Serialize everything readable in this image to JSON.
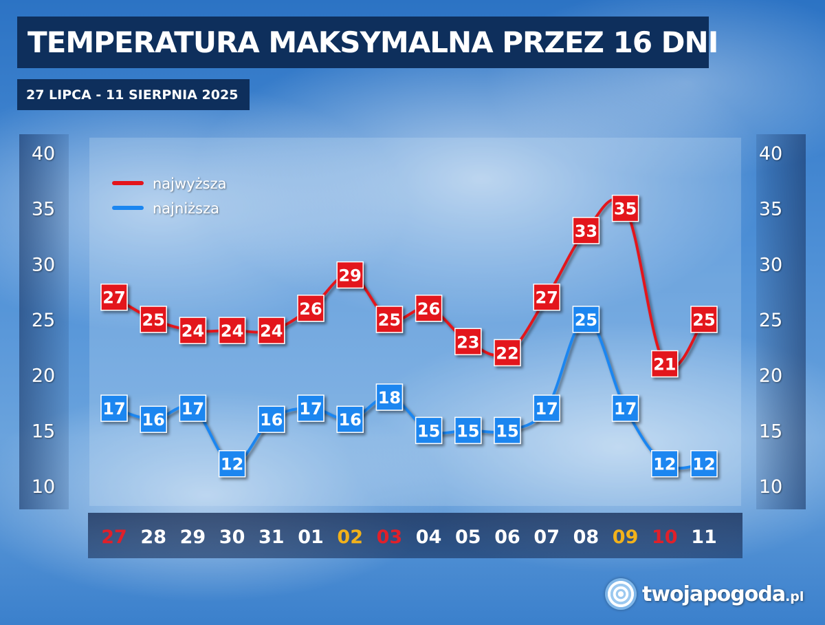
{
  "title": "TEMPERATURA MAKSYMALNA PRZEZ 16 DNI",
  "subtitle": "27 LIPCA - 11 SIERPNIA 2025",
  "logo": {
    "name": "twojapogoda",
    "suffix": ".pl"
  },
  "chart_data": {
    "type": "line",
    "title": "TEMPERATURA MAKSYMALNA PRZEZ 16 DNI",
    "subtitle": "27 LIPCA - 11 SIERPNIA 2025",
    "categories": [
      "27",
      "28",
      "29",
      "30",
      "31",
      "01",
      "02",
      "03",
      "04",
      "05",
      "06",
      "07",
      "08",
      "09",
      "10",
      "11"
    ],
    "category_colors": [
      "#e0202a",
      "#ffffff",
      "#ffffff",
      "#ffffff",
      "#ffffff",
      "#ffffff",
      "#f2b21b",
      "#e0202a",
      "#ffffff",
      "#ffffff",
      "#ffffff",
      "#ffffff",
      "#ffffff",
      "#f2b21b",
      "#e0202a",
      "#ffffff"
    ],
    "yticks": [
      40,
      35,
      30,
      25,
      20,
      15,
      10
    ],
    "ylim": [
      10,
      40
    ],
    "legend_position": "top-left",
    "grid": false,
    "series": [
      {
        "name": "najwyższa",
        "color": "#e3141b",
        "values": [
          27,
          25,
          24,
          24,
          24,
          26,
          29,
          25,
          26,
          23,
          22,
          27,
          33,
          35,
          21,
          25
        ]
      },
      {
        "name": "najniższa",
        "color": "#1b86f0",
        "values": [
          17,
          16,
          17,
          12,
          16,
          17,
          16,
          18,
          15,
          15,
          15,
          17,
          25,
          17,
          12,
          12
        ]
      }
    ]
  }
}
